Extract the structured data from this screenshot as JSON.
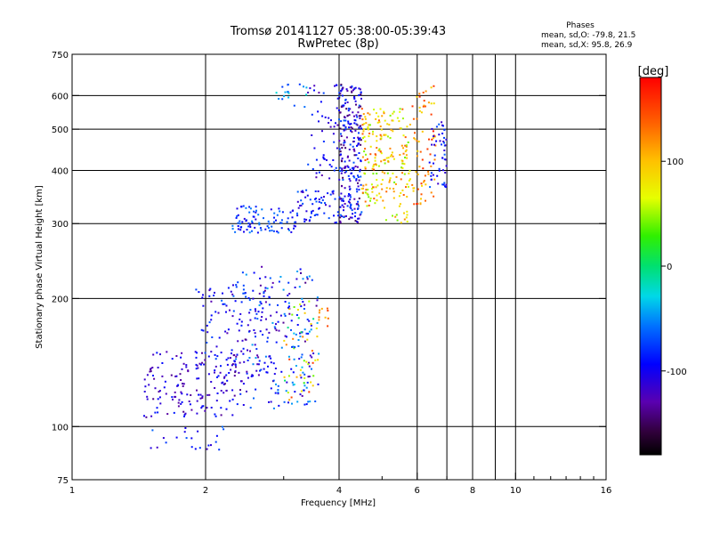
{
  "chart_data": {
    "type": "scatter",
    "title": "Tromsø 20141127 05:38:00-05:39:43",
    "subtitle": "RwPretec (8p)",
    "xlabel": "Frequency [MHz]",
    "ylabel": "Stationary phase Virtual Height [km]",
    "x_scale": "log2",
    "y_scale": "log",
    "xlim": [
      1,
      16
    ],
    "ylim": [
      75,
      750
    ],
    "x_ticks": [
      1,
      2,
      4,
      6,
      8,
      10,
      16
    ],
    "y_ticks": [
      75,
      100,
      200,
      300,
      400,
      500,
      600,
      750
    ],
    "x_gridlines": [
      2,
      4,
      6,
      7,
      8,
      9,
      10
    ],
    "y_gridlines": [
      100,
      200,
      300,
      400,
      500,
      600
    ],
    "grid": true,
    "stats": {
      "heading": "Phases",
      "line1": "mean, sd,O: -79.8, 21.5",
      "line2": "mean, sd,X:  95.8, 26.9"
    },
    "colorbar": {
      "label": "[deg]",
      "range": [
        -180,
        180
      ],
      "ticks": [
        100,
        0,
        -100
      ],
      "colormap": "rainbow"
    },
    "clusters": [
      {
        "x": [
          1.45,
          2.35
        ],
        "y": [
          105,
          150
        ],
        "n": 160,
        "phase": [
          -140,
          -85
        ]
      },
      {
        "x": [
          1.5,
          2.2
        ],
        "y": [
          88,
          100
        ],
        "n": 22,
        "phase": [
          -120,
          -60
        ]
      },
      {
        "x": [
          1.9,
          2.9
        ],
        "y": [
          130,
          215
        ],
        "n": 110,
        "phase": [
          -130,
          -60
        ]
      },
      {
        "x": [
          2.3,
          3.6
        ],
        "y": [
          110,
          240
        ],
        "n": 190,
        "phase": [
          -140,
          -40
        ]
      },
      {
        "x": [
          3.0,
          3.6
        ],
        "y": [
          120,
          200
        ],
        "n": 50,
        "phase": [
          -100,
          100
        ]
      },
      {
        "x": [
          3.0,
          3.5
        ],
        "y": [
          115,
          165
        ],
        "n": 16,
        "phase": [
          80,
          160
        ]
      },
      {
        "x": [
          3.6,
          4.0
        ],
        "y": [
          170,
          190
        ],
        "n": 10,
        "phase": [
          90,
          150
        ]
      },
      {
        "x": [
          2.3,
          3.2
        ],
        "y": [
          285,
          330
        ],
        "n": 90,
        "phase": [
          -110,
          -50
        ]
      },
      {
        "x": [
          3.2,
          4.0
        ],
        "y": [
          300,
          360
        ],
        "n": 60,
        "phase": [
          -120,
          -60
        ]
      },
      {
        "x": [
          3.4,
          4.0
        ],
        "y": [
          380,
          650
        ],
        "n": 50,
        "phase": [
          -130,
          -70
        ]
      },
      {
        "x": [
          4.0,
          4.5
        ],
        "y": [
          300,
          640
        ],
        "n": 260,
        "phase": [
          -150,
          -60
        ]
      },
      {
        "x": [
          4.5,
          5.0
        ],
        "y": [
          330,
          560
        ],
        "n": 110,
        "phase": [
          40,
          150
        ]
      },
      {
        "x": [
          5.0,
          5.8
        ],
        "y": [
          300,
          560
        ],
        "n": 110,
        "phase": [
          40,
          140
        ]
      },
      {
        "x": [
          5.8,
          6.6
        ],
        "y": [
          330,
          650
        ],
        "n": 70,
        "phase": [
          80,
          170
        ]
      },
      {
        "x": [
          6.4,
          7.0
        ],
        "y": [
          350,
          520
        ],
        "n": 50,
        "phase": [
          -120,
          -60
        ]
      },
      {
        "x": [
          2.8,
          3.4
        ],
        "y": [
          560,
          640
        ],
        "n": 18,
        "phase": [
          -80,
          -20
        ]
      }
    ]
  }
}
